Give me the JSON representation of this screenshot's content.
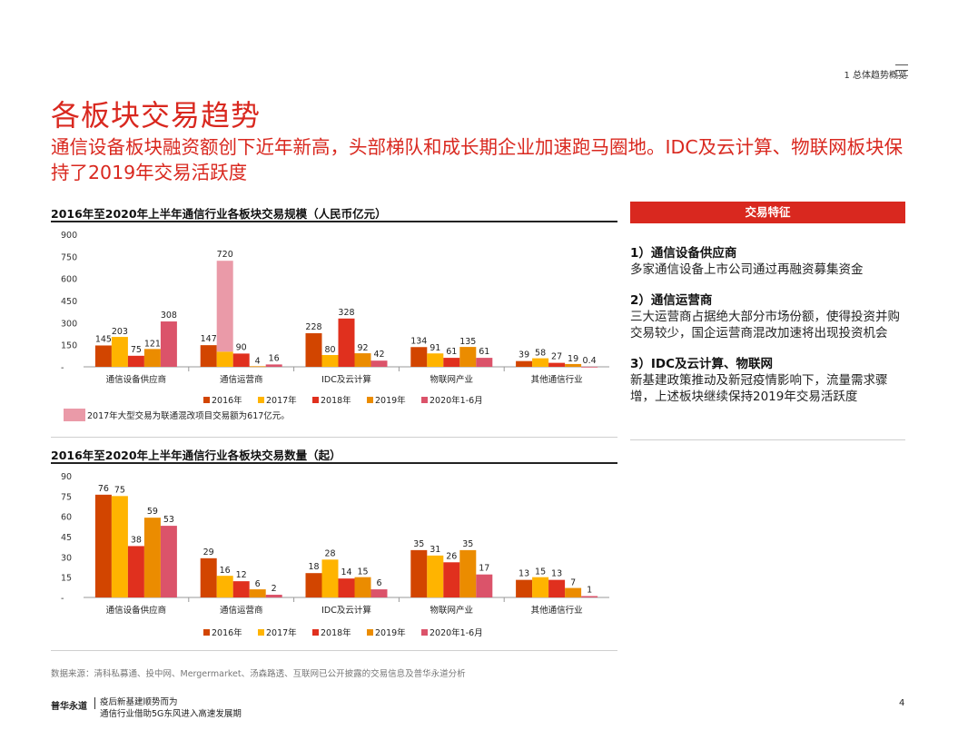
{
  "header": {
    "section": "1 总体趋势概览"
  },
  "title": "各板块交易趋势",
  "subtitle": "通信设备板块融资额创下近年新高，头部梯队和成长期企业加速跑马圈地。IDC及云计算、物联网板块保持了2019年交易活跃度",
  "right_panel": {
    "header": "交易特征",
    "items": [
      {
        "title": "1）通信设备供应商",
        "desc": "多家通信设备上市公司通过再融资募集资金"
      },
      {
        "title": "2）通信运营商",
        "desc": "三大运营商占据绝大部分市场份额，使得投资并购交易较少，国企运营商混改加速将出现投资机会"
      },
      {
        "title": "3）IDC及云计算、物联网",
        "desc": "新基建政策推动及新冠疫情影响下，流量需求骤增，上述板块继续保持2019年交易活跃度"
      }
    ]
  },
  "colors": {
    "accent": "#d9281f",
    "s2016": "#d24500",
    "s2017": "#ffb400",
    "s2018": "#e0301e",
    "s2019": "#eb8c00",
    "s2020": "#db536a",
    "special": "#ea9aa8"
  },
  "chart_data": [
    {
      "type": "bar",
      "title": "2016年至2020年上半年通信行业各板块交易规模（人民币亿元）",
      "categories": [
        "通信设备供应商",
        "通信运营商",
        "IDC及云计算",
        "物联网产业",
        "其他通信行业"
      ],
      "series": [
        {
          "name": "2016年",
          "values": [
            145,
            147,
            228,
            134,
            39
          ]
        },
        {
          "name": "2017年",
          "values": [
            203,
            720,
            80,
            91,
            58
          ]
        },
        {
          "name": "2018年",
          "values": [
            75,
            90,
            328,
            61,
            27
          ]
        },
        {
          "name": "2019年",
          "values": [
            121,
            4,
            92,
            135,
            19
          ]
        },
        {
          "name": "2020年1-6月",
          "values": [
            308,
            16,
            42,
            61,
            0.4
          ]
        }
      ],
      "ylim": [
        0,
        900
      ],
      "yticks": [
        "-",
        "150",
        "300",
        "450",
        "600",
        "750",
        "900"
      ],
      "note": "2017年大型交易为联通混改项目交易额为617亿元。"
    },
    {
      "type": "bar",
      "title": "2016年至2020年上半年通信行业各板块交易数量（起）",
      "categories": [
        "通信设备供应商",
        "通信运营商",
        "IDC及云计算",
        "物联网产业",
        "其他通信行业"
      ],
      "series": [
        {
          "name": "2016年",
          "values": [
            76,
            29,
            18,
            35,
            13
          ]
        },
        {
          "name": "2017年",
          "values": [
            75,
            16,
            28,
            31,
            15
          ]
        },
        {
          "name": "2018年",
          "values": [
            38,
            12,
            14,
            26,
            13
          ]
        },
        {
          "name": "2019年",
          "values": [
            59,
            6,
            15,
            35,
            7
          ]
        },
        {
          "name": "2020年1-6月",
          "values": [
            53,
            2,
            6,
            17,
            1
          ]
        }
      ],
      "ylim": [
        0,
        90
      ],
      "yticks": [
        "-",
        "15",
        "30",
        "45",
        "60",
        "75",
        "90"
      ]
    }
  ],
  "source": "数据来源：清科私募通、投中网、Mergermarket、汤森路透、互联网已公开披露的交易信息及普华永道分析",
  "footer": {
    "brand": "普华永道",
    "report_line1": "疫后新基建顺势而为",
    "report_line2": "通信行业借助5G东风进入高速发展期",
    "page": "4"
  }
}
